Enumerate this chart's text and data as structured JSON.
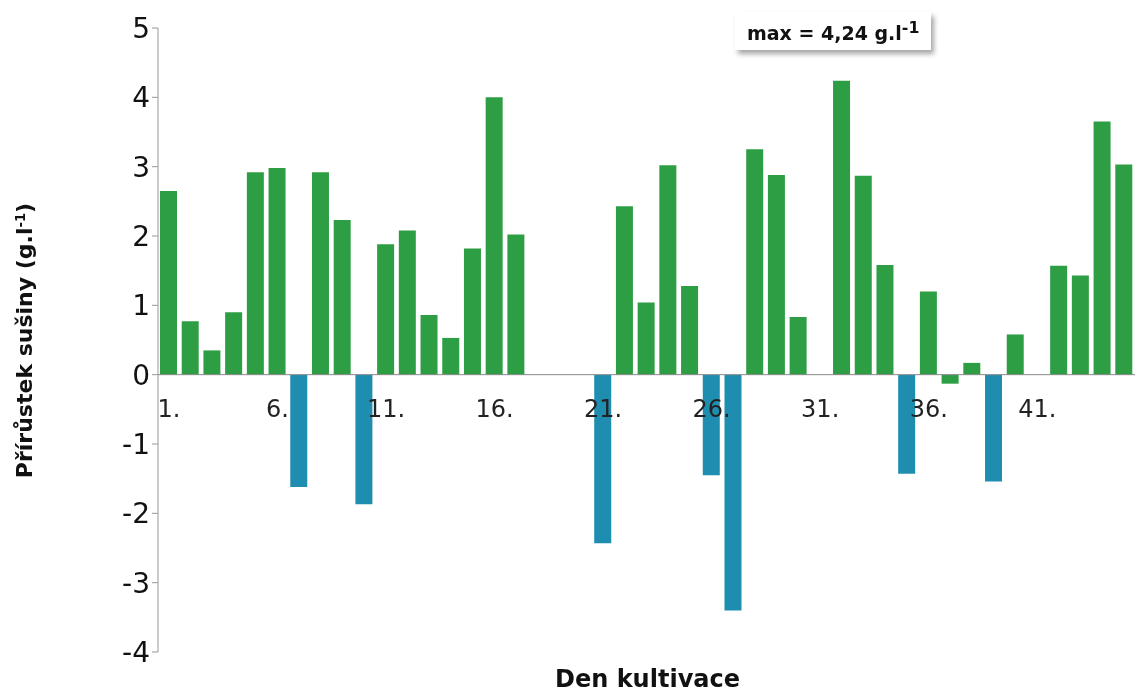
{
  "chart_data": {
    "type": "bar",
    "xlabel": "Den kultivace",
    "ylabel": "Přírůstek sušiny (g.l$^{-1}$)",
    "categories": [
      "1.",
      null,
      null,
      null,
      null,
      "6.",
      null,
      null,
      null,
      null,
      "11.",
      null,
      null,
      null,
      null,
      "16.",
      null,
      null,
      null,
      null,
      "21.",
      null,
      null,
      null,
      null,
      "26.",
      null,
      null,
      null,
      null,
      "31.",
      null,
      null,
      null,
      null,
      "36.",
      null,
      null,
      null,
      null,
      "41.",
      null,
      null,
      null,
      null
    ],
    "values": [
      2.65,
      0.77,
      0.35,
      0.9,
      2.92,
      2.98,
      -1.62,
      2.92,
      2.23,
      -1.87,
      1.88,
      2.08,
      0.86,
      0.53,
      1.82,
      4.0,
      2.02,
      null,
      null,
      null,
      -2.43,
      2.43,
      1.04,
      3.02,
      1.28,
      -1.45,
      -3.4,
      3.25,
      2.88,
      0.83,
      null,
      4.24,
      2.87,
      1.58,
      -1.43,
      1.2,
      -0.13,
      0.17,
      -1.54,
      0.58,
      null,
      1.57,
      1.43,
      3.65,
      3.03
    ],
    "colors": [
      "#2e9e44",
      "#2e9e44",
      "#2e9e44",
      "#2e9e44",
      "#2e9e44",
      "#2e9e44",
      "#1f8db0",
      "#2e9e44",
      "#2e9e44",
      "#1f8db0",
      "#2e9e44",
      "#2e9e44",
      "#2e9e44",
      "#2e9e44",
      "#2e9e44",
      "#2e9e44",
      "#2e9e44",
      "#2e9e44",
      "#2e9e44",
      "#2e9e44",
      "#1f8db0",
      "#2e9e44",
      "#2e9e44",
      "#2e9e44",
      "#2e9e44",
      "#1f8db0",
      "#1f8db0",
      "#2e9e44",
      "#2e9e44",
      "#2e9e44",
      "#2e9e44",
      "#2e9e44",
      "#2e9e44",
      "#2e9e44",
      "#1f8db0",
      "#2e9e44",
      "#2e9e44",
      "#2e9e44",
      "#1f8db0",
      "#2e9e44",
      "#2e9e44",
      "#2e9e44",
      "#2e9e44",
      "#2e9e44",
      "#2e9e44"
    ],
    "ylim": [
      -4,
      5
    ],
    "yticks": [
      -4,
      -3,
      -2,
      -1,
      0,
      1,
      2,
      3,
      4,
      5
    ],
    "annotations": [
      "max = 4,24 g.l$^{-1}$"
    ]
  }
}
